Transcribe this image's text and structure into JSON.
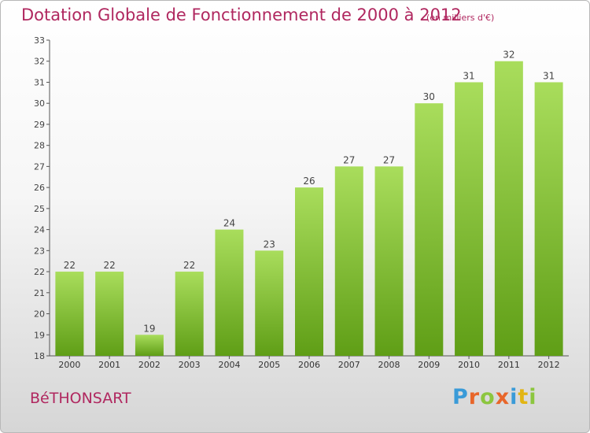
{
  "title": "Dotation Globale de Fonctionnement de 2000 à 2012",
  "unit_note": "(en milliers d'€)",
  "town": "BéTHONSART",
  "logo": {
    "letters": [
      "P",
      "r",
      "o",
      "x",
      "i",
      "t",
      "i"
    ],
    "colors": [
      "#3a9bd8",
      "#e8662a",
      "#8cc63f",
      "#e8662a",
      "#3a9bd8",
      "#e2b514",
      "#8cc63f"
    ]
  },
  "colors": {
    "bar_light": "#a9dd5c",
    "bar_dark": "#5f9e16",
    "text": "#b0275f"
  },
  "chart_data": {
    "type": "bar",
    "title": "Dotation Globale de Fonctionnement de 2000 à 2012",
    "subtitle": "(en milliers d'€)",
    "categories": [
      "2000",
      "2001",
      "2002",
      "2003",
      "2004",
      "2005",
      "2006",
      "2007",
      "2008",
      "2009",
      "2010",
      "2011",
      "2012"
    ],
    "values": [
      22,
      22,
      19,
      22,
      24,
      23,
      26,
      27,
      27,
      30,
      31,
      32,
      31
    ],
    "ylim": [
      18,
      33
    ],
    "yticks": [
      18,
      19,
      20,
      21,
      22,
      23,
      24,
      25,
      26,
      27,
      28,
      29,
      30,
      31,
      32,
      33
    ],
    "grid": false,
    "legend": "none"
  }
}
